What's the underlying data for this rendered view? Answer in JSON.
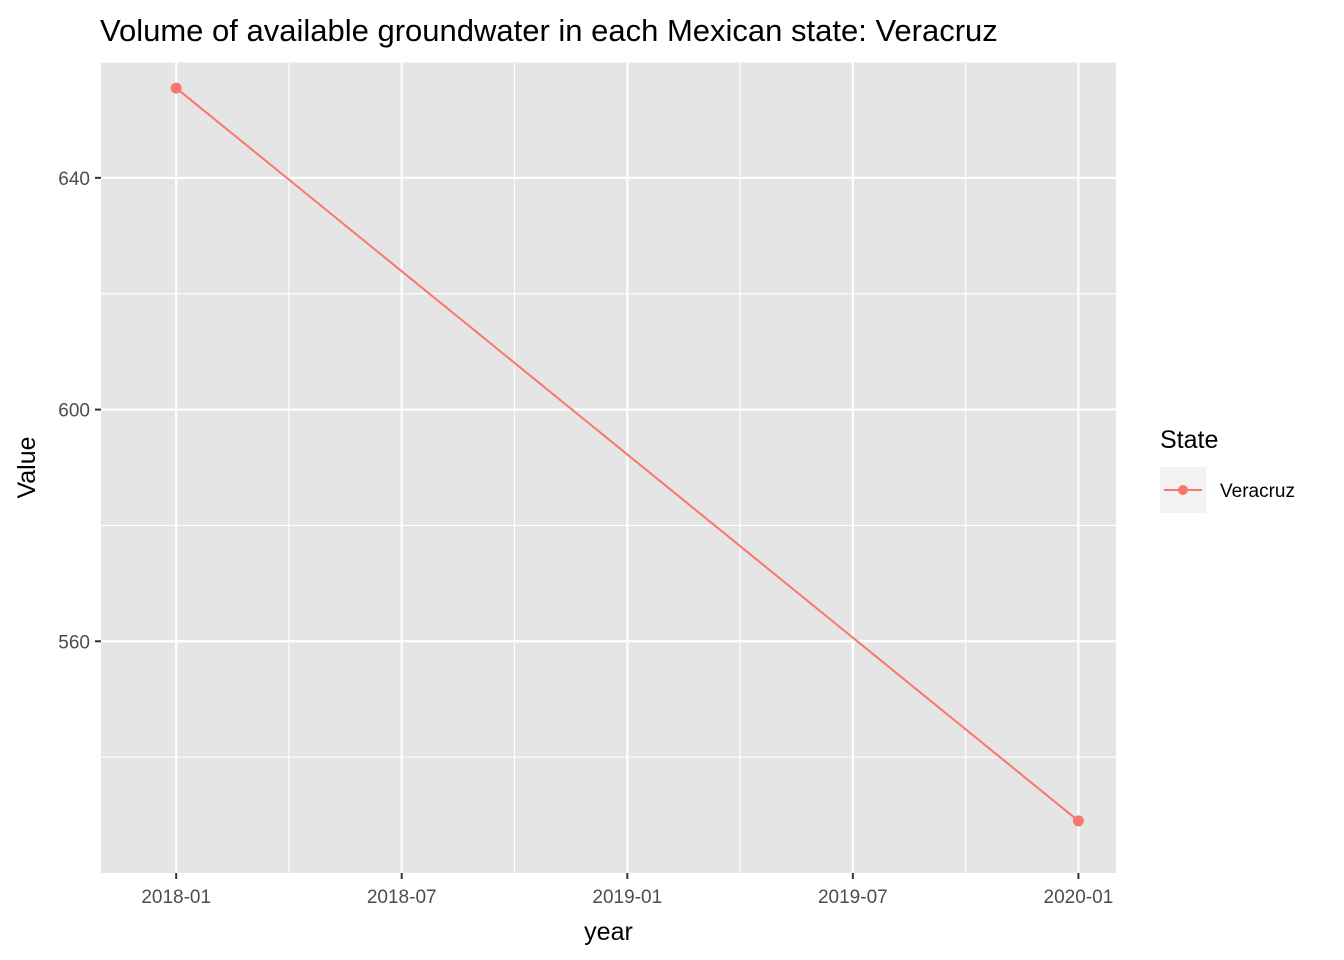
{
  "chart_data": {
    "type": "line",
    "title": "Volume of available groundwater in each Mexican state: Veracruz",
    "xlabel": "year",
    "ylabel": "Value",
    "x_ticks": [
      "2018-01",
      "2018-07",
      "2019-01",
      "2019-07",
      "2020-01"
    ],
    "x_tick_months": [
      0,
      6,
      12,
      18,
      24
    ],
    "xlim_months": [
      -2,
      25
    ],
    "y_ticks": [
      560,
      600,
      640
    ],
    "ylim": [
      520,
      660
    ],
    "grid": true,
    "legend": {
      "title": "State",
      "placement": "right"
    },
    "series": [
      {
        "name": "Veracruz",
        "color": "#f8766d",
        "x": [
          "2018-01",
          "2020-01"
        ],
        "x_months": [
          0,
          24
        ],
        "values": [
          655.5,
          529
        ]
      }
    ]
  },
  "colors": {
    "panel_background": "#e5e5e5",
    "grid": "#ffffff",
    "legend_key_background": "#f2f2f2"
  }
}
